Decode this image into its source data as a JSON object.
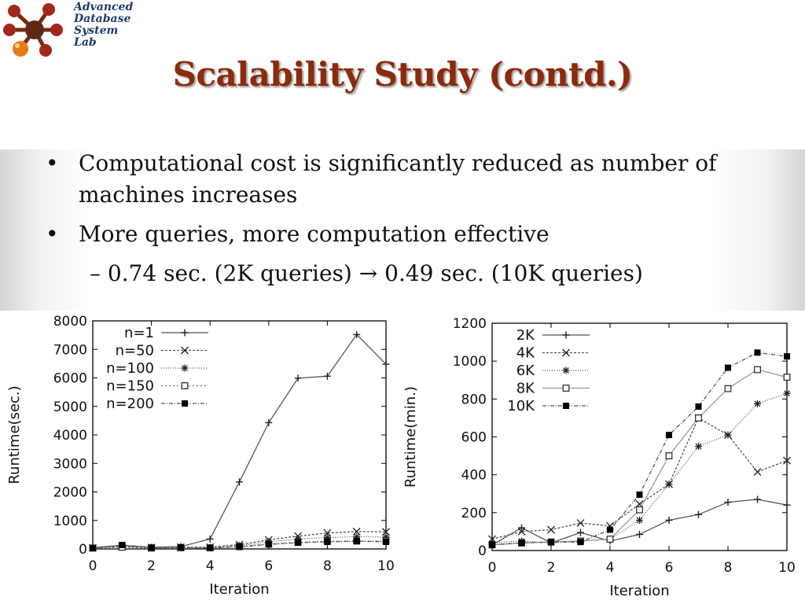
{
  "logo": {
    "lines": [
      "Advanced",
      "Database",
      "System",
      "Lab"
    ],
    "icon": "molecule-icon"
  },
  "title": "Scalability Study (contd.)",
  "bullets": [
    {
      "text": "Computational cost is significantly reduced as number of machines increases"
    },
    {
      "text": "More queries, more computation effective"
    }
  ],
  "sub_bullet": {
    "dash": "–",
    "left": "0.74 sec. (2K queries)",
    "arrow": "→",
    "right": "0.49 sec. (10K queries)"
  },
  "chart_data": [
    {
      "type": "line",
      "xlabel": "Iteration",
      "ylabel": "Runtime(sec.)",
      "xlim": [
        0,
        10
      ],
      "ylim": [
        0,
        8000
      ],
      "xticks": [
        0,
        2,
        4,
        6,
        8,
        10
      ],
      "yticks": [
        0,
        1000,
        2000,
        3000,
        4000,
        5000,
        6000,
        7000,
        8000
      ],
      "legend_position": "top-left",
      "x": [
        0,
        1,
        2,
        3,
        4,
        5,
        6,
        7,
        8,
        9,
        10
      ],
      "series": [
        {
          "name": "n=1",
          "marker": "plus",
          "dash": "",
          "color": "#555555",
          "values": [
            50,
            120,
            60,
            80,
            350,
            2350,
            4430,
            5990,
            6060,
            7520,
            6480
          ]
        },
        {
          "name": "n=50",
          "marker": "x",
          "dash": "3,2",
          "color": "#555555",
          "values": [
            40,
            90,
            50,
            60,
            60,
            150,
            320,
            450,
            560,
            610,
            600
          ]
        },
        {
          "name": "n=100",
          "marker": "star",
          "dash": "1,2",
          "color": "#555555",
          "values": [
            40,
            70,
            40,
            50,
            50,
            120,
            250,
            350,
            400,
            430,
            420
          ]
        },
        {
          "name": "n=150",
          "marker": "square-open",
          "dash": "2,3",
          "color": "#777777",
          "values": [
            30,
            60,
            30,
            40,
            40,
            90,
            170,
            230,
            270,
            280,
            280
          ]
        },
        {
          "name": "n=200",
          "marker": "square",
          "dash": "5,2,1,2",
          "color": "#555555",
          "values": [
            30,
            140,
            50,
            60,
            30,
            70,
            160,
            220,
            250,
            270,
            250
          ]
        }
      ]
    },
    {
      "type": "line",
      "xlabel": "Iteration",
      "ylabel": "Runtime(min.)",
      "xlim": [
        0,
        10
      ],
      "ylim": [
        0,
        1200
      ],
      "xticks": [
        0,
        2,
        4,
        6,
        8,
        10
      ],
      "yticks": [
        0,
        200,
        400,
        600,
        800,
        1000,
        1200
      ],
      "legend_position": "top-left",
      "x": [
        0,
        1,
        2,
        3,
        4,
        5,
        6,
        7,
        8,
        9,
        10
      ],
      "series": [
        {
          "name": "2K",
          "marker": "plus",
          "dash": "",
          "color": "#555555",
          "values": [
            30,
            120,
            40,
            95,
            50,
            85,
            160,
            190,
            255,
            270,
            240
          ]
        },
        {
          "name": "4K",
          "marker": "x",
          "dash": "3,2",
          "color": "#555555",
          "values": [
            60,
            100,
            110,
            145,
            130,
            245,
            350,
            700,
            610,
            415,
            475
          ]
        },
        {
          "name": "6K",
          "marker": "star",
          "dash": "1,2",
          "color": "#555555",
          "values": [
            40,
            50,
            40,
            50,
            60,
            160,
            350,
            550,
            610,
            775,
            830
          ]
        },
        {
          "name": "8K",
          "marker": "square-open",
          "dash": "",
          "color": "#999999",
          "values": [
            30,
            40,
            45,
            50,
            60,
            215,
            500,
            700,
            855,
            955,
            915
          ]
        },
        {
          "name": "10K",
          "marker": "square",
          "dash": "5,2,1,2",
          "color": "#555555",
          "values": [
            30,
            40,
            45,
            45,
            110,
            295,
            610,
            760,
            965,
            1045,
            1025
          ]
        }
      ]
    }
  ]
}
